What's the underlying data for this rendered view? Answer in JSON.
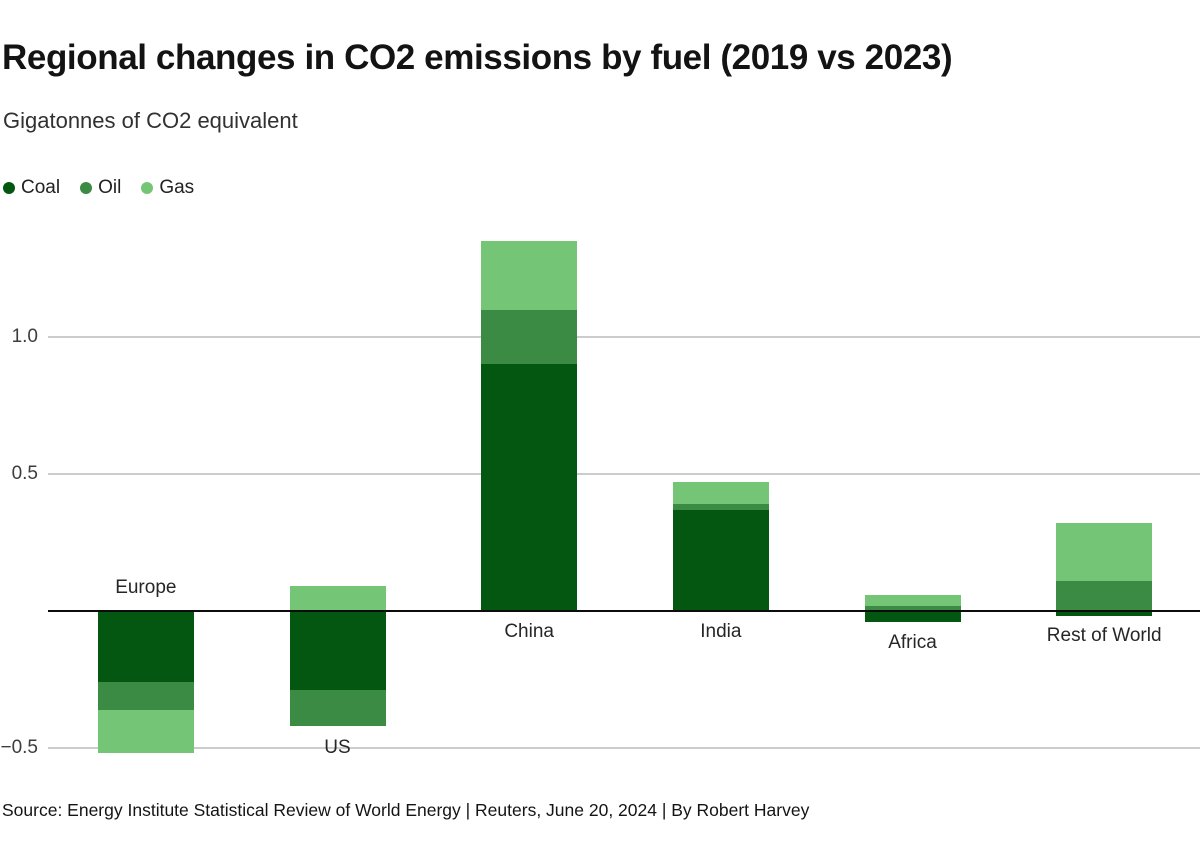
{
  "header": {
    "title": "Regional changes in CO2 emissions by fuel (2019 vs 2023)",
    "subtitle": "Gigatonnes of CO2 equivalent"
  },
  "chart_data": {
    "type": "bar",
    "stacked": true,
    "title": "Regional changes in CO2 emissions by fuel (2019 vs 2023)",
    "ylabel": "Gigatonnes of CO2 equivalent",
    "categories": [
      "Europe",
      "US",
      "China",
      "India",
      "Africa",
      "Rest of World"
    ],
    "series": [
      {
        "name": "Coal",
        "color": "#045710",
        "values": [
          -0.26,
          -0.29,
          0.9,
          0.37,
          -0.04,
          -0.02
        ]
      },
      {
        "name": "Oil",
        "color": "#3b8b45",
        "values": [
          -0.1,
          -0.13,
          0.2,
          0.02,
          0.02,
          0.11
        ]
      },
      {
        "name": "Gas",
        "color": "#75c577",
        "values": [
          -0.16,
          0.09,
          0.25,
          0.08,
          0.04,
          0.21
        ]
      }
    ],
    "yticks": [
      {
        "value": 1.0,
        "label": "1.0"
      },
      {
        "value": 0.5,
        "label": "0.5"
      },
      {
        "value": -0.5,
        "label": "−0.5"
      }
    ],
    "ylim": [
      -0.6,
      1.45
    ],
    "grid": true,
    "legend_position": "top-left",
    "axis_colors": {
      "gridline": "#cccccc",
      "baseline": "#0c0c0c"
    }
  },
  "footer": {
    "source": "Source: Energy Institute Statistical Review of World Energy | Reuters, June 20, 2024 | By Robert Harvey"
  }
}
